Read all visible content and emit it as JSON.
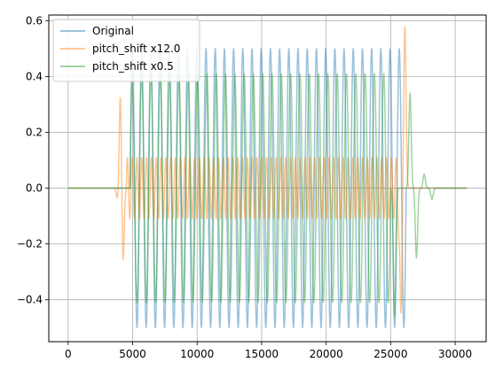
{
  "chart_data": {
    "type": "line",
    "title": "",
    "xlabel": "",
    "ylabel": "",
    "xlim": [
      -1500,
      32400
    ],
    "ylim": [
      -0.55,
      0.62
    ],
    "xticks": [
      0,
      5000,
      10000,
      15000,
      20000,
      25000,
      30000
    ],
    "yticks": [
      -0.4,
      -0.2,
      0.0,
      0.2,
      0.4,
      0.6
    ],
    "xtick_labels": [
      "0",
      "5000",
      "10000",
      "15000",
      "20000",
      "25000",
      "30000"
    ],
    "ytick_labels": [
      "−0.4",
      "−0.2",
      "0.0",
      "0.2",
      "0.4",
      "0.6"
    ],
    "grid": true,
    "legend_position": "top-left",
    "series": [
      {
        "name": "Original",
        "color": "#1f77b4",
        "alpha": 0.45,
        "segments": [
          {
            "x0": 0,
            "x1": 4800,
            "amplitude": 0.0
          },
          {
            "x0": 4800,
            "x1": 26200,
            "amplitude": 0.5,
            "cycles": 30
          }
        ],
        "x_end": 30900
      },
      {
        "name": "pitch_shift x12.0",
        "color": "#ff7f0e",
        "alpha": 0.45,
        "events": [
          {
            "x": 3850,
            "y": -0.05
          },
          {
            "x": 4050,
            "y": 0.35
          },
          {
            "x": 4250,
            "y": -0.28
          },
          {
            "x": 25800,
            "y": -0.45
          },
          {
            "x": 26100,
            "y": 0.58
          }
        ],
        "segments": [
          {
            "x0": 4500,
            "x1": 25700,
            "amplitude": 0.11,
            "cycles": 57
          }
        ],
        "x_end": 30900
      },
      {
        "name": "pitch_shift x0.5",
        "color": "#2ca02c",
        "alpha": 0.45,
        "segments": [
          {
            "x0": 4800,
            "x1": 25000,
            "amplitude": 0.41,
            "cycles": 28
          }
        ],
        "events": [
          {
            "x": 5100,
            "y": -0.08
          },
          {
            "x": 25300,
            "y": -0.46
          },
          {
            "x": 26500,
            "y": 0.34
          },
          {
            "x": 27000,
            "y": -0.25
          },
          {
            "x": 27600,
            "y": 0.05
          },
          {
            "x": 28200,
            "y": -0.04
          }
        ],
        "x_end": 30900
      }
    ]
  }
}
